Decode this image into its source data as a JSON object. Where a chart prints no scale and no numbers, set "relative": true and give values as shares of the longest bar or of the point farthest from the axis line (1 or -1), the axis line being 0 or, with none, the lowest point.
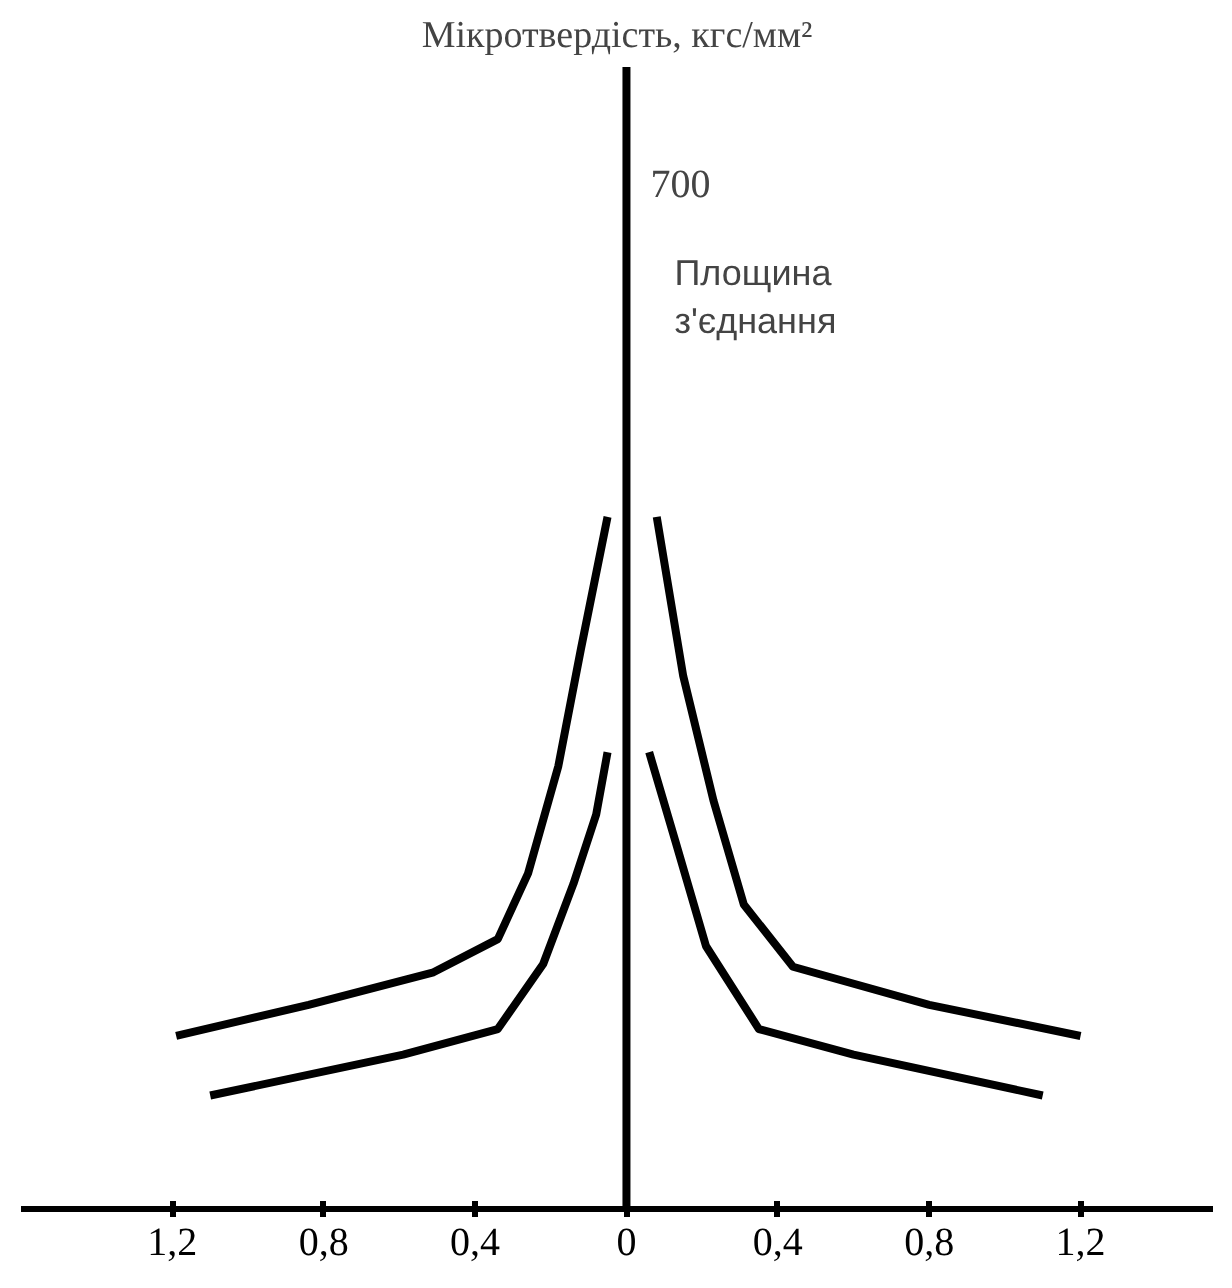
{
  "chart_data": {
    "type": "line",
    "relative": true,
    "title": "Мікротвердість, кгс/мм²",
    "annotations": [
      "700"
    ],
    "xlim": [
      -1.6,
      1.55
    ],
    "xticks": [
      {
        "value": -1.2,
        "label": "1,2"
      },
      {
        "value": -0.8,
        "label": "0,8"
      },
      {
        "value": -0.4,
        "label": "0,4"
      },
      0,
      {
        "value": 0.4,
        "label": "0,4"
      },
      {
        "value": 0.8,
        "label": "0,8"
      },
      {
        "value": 1.2,
        "label": "1,2"
      }
    ],
    "ref_lines": [
      {
        "axis": "x",
        "value": 0,
        "label": "Площина\nз'єднання",
        "color": "#000000"
      }
    ],
    "series": [
      {
        "color": "#000000",
        "x": [
          -1.19,
          -0.84,
          -0.51,
          -0.34,
          -0.26,
          -0.18,
          -0.12,
          -0.05,
          null,
          0.08,
          0.15,
          0.23,
          0.31,
          0.44,
          0.8,
          1.2
        ],
        "values": [
          0.25,
          0.295,
          0.342,
          0.39,
          0.485,
          0.64,
          0.81,
          1.0,
          null,
          1.0,
          0.77,
          0.59,
          0.44,
          0.35,
          0.295,
          0.25
        ]
      },
      {
        "color": "#000000",
        "x": [
          -1.1,
          -0.59,
          -0.34,
          -0.22,
          -0.14,
          -0.08,
          -0.05,
          null,
          0.06,
          0.13,
          0.21,
          0.35,
          0.6,
          1.1
        ],
        "values": [
          0.164,
          0.223,
          0.26,
          0.354,
          0.47,
          0.57,
          0.66,
          null,
          0.66,
          0.53,
          0.38,
          0.26,
          0.223,
          0.164
        ]
      }
    ],
    "grid": false
  }
}
